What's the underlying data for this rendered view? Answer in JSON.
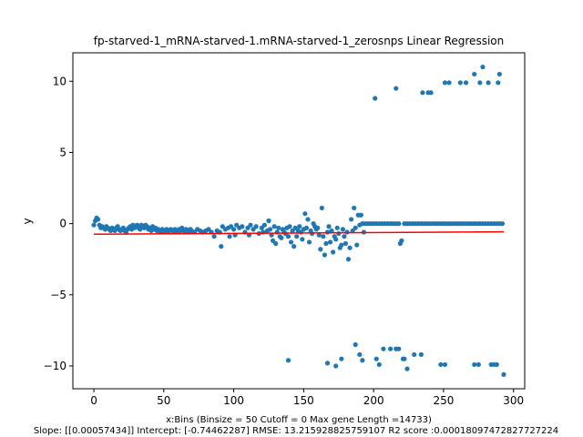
{
  "chart_data": {
    "type": "scatter",
    "title": "fp-starved-1_mRNA-starved-1.mRNA-starved-1_zerosnps Linear Regression",
    "xlabel": "x:Bins  (Binsize = 50 Cutoff = 0 Max gene Length =14733)",
    "ylabel": "y",
    "footer": "Slope: [[0.00057434]] Intercept: [-0.74462287] RMSE: 13.215928825759107 R2 score :0.00018097472827727224",
    "xlim": [
      -15,
      308
    ],
    "ylim": [
      -11.6,
      12
    ],
    "xticks": [
      0,
      50,
      100,
      150,
      200,
      250,
      300
    ],
    "yticks": [
      -10,
      -5,
      0,
      5,
      10
    ],
    "point_color": "#1f77b4",
    "line_color": "#ff0000",
    "regression": {
      "slope": 0.00057434,
      "intercept": -0.74462287,
      "x_range": [
        0,
        293
      ]
    },
    "points": [
      [
        0,
        -0.1
      ],
      [
        1,
        0.2
      ],
      [
        2,
        0.4
      ],
      [
        3,
        0.3
      ],
      [
        4,
        -0.1
      ],
      [
        5,
        -0.3
      ],
      [
        6,
        -0.2
      ],
      [
        7,
        -0.3
      ],
      [
        8,
        -0.4
      ],
      [
        9,
        -0.2
      ],
      [
        10,
        -0.3
      ],
      [
        11,
        -0.4
      ],
      [
        12,
        -0.5
      ],
      [
        13,
        -0.3
      ],
      [
        14,
        -0.4
      ],
      [
        15,
        -0.5
      ],
      [
        16,
        -0.3
      ],
      [
        17,
        -0.2
      ],
      [
        18,
        -0.4
      ],
      [
        19,
        -0.5
      ],
      [
        20,
        -0.4
      ],
      [
        21,
        -0.3
      ],
      [
        22,
        -0.5
      ],
      [
        23,
        -0.6
      ],
      [
        24,
        -0.4
      ],
      [
        25,
        -0.3
      ],
      [
        26,
        -0.2
      ],
      [
        27,
        -0.4
      ],
      [
        28,
        -0.1
      ],
      [
        29,
        -0.3
      ],
      [
        30,
        -0.2
      ],
      [
        31,
        -0.1
      ],
      [
        32,
        -0.3
      ],
      [
        33,
        -0.4
      ],
      [
        34,
        -0.1
      ],
      [
        35,
        -0.2
      ],
      [
        36,
        -0.3
      ],
      [
        37,
        -0.1
      ],
      [
        38,
        -0.2
      ],
      [
        39,
        -0.4
      ],
      [
        40,
        -0.3
      ],
      [
        41,
        -0.5
      ],
      [
        42,
        -0.2
      ],
      [
        43,
        -0.4
      ],
      [
        44,
        -0.3
      ],
      [
        45,
        -0.5
      ],
      [
        46,
        -0.4
      ],
      [
        47,
        -0.6
      ],
      [
        48,
        -0.5
      ],
      [
        49,
        -0.4
      ],
      [
        50,
        -0.6
      ],
      [
        51,
        -0.5
      ],
      [
        52,
        -0.4
      ],
      [
        53,
        -0.6
      ],
      [
        54,
        -0.5
      ],
      [
        55,
        -0.4
      ],
      [
        56,
        -0.5
      ],
      [
        57,
        -0.6
      ],
      [
        58,
        -0.4
      ],
      [
        59,
        -0.5
      ],
      [
        60,
        -0.6
      ],
      [
        61,
        -0.4
      ],
      [
        62,
        -0.5
      ],
      [
        63,
        -0.3
      ],
      [
        64,
        -0.5
      ],
      [
        65,
        -0.6
      ],
      [
        66,
        -0.4
      ],
      [
        67,
        -0.5
      ],
      [
        68,
        -0.6
      ],
      [
        69,
        -0.4
      ],
      [
        70,
        -0.5
      ],
      [
        72,
        -0.6
      ],
      [
        74,
        -0.4
      ],
      [
        76,
        -0.5
      ],
      [
        78,
        -0.6
      ],
      [
        80,
        -0.5
      ],
      [
        82,
        -0.4
      ],
      [
        84,
        -0.6
      ],
      [
        86,
        -0.9
      ],
      [
        88,
        -0.5
      ],
      [
        90,
        -0.6
      ],
      [
        91,
        -1.6
      ],
      [
        92,
        -0.2
      ],
      [
        94,
        -0.4
      ],
      [
        96,
        -0.3
      ],
      [
        97,
        -0.9
      ],
      [
        98,
        -0.2
      ],
      [
        100,
        -0.4
      ],
      [
        101,
        -0.8
      ],
      [
        102,
        -0.1
      ],
      [
        104,
        -0.3
      ],
      [
        106,
        -0.2
      ],
      [
        108,
        -0.6
      ],
      [
        110,
        -0.3
      ],
      [
        111,
        -0.8
      ],
      [
        112,
        -0.1
      ],
      [
        114,
        -0.4
      ],
      [
        116,
        -0.2
      ],
      [
        118,
        -0.7
      ],
      [
        120,
        -0.3
      ],
      [
        121,
        -0.6
      ],
      [
        122,
        -0.1
      ],
      [
        124,
        -0.5
      ],
      [
        125,
        0.2
      ],
      [
        126,
        -0.4
      ],
      [
        127,
        -0.8
      ],
      [
        128,
        -1.2
      ],
      [
        129,
        -0.2
      ],
      [
        130,
        -1.4
      ],
      [
        131,
        -0.6
      ],
      [
        132,
        -0.3
      ],
      [
        133,
        -0.9
      ],
      [
        134,
        -1.0
      ],
      [
        135,
        -0.4
      ],
      [
        136,
        -0.6
      ],
      [
        137,
        -0.7
      ],
      [
        138,
        -0.3
      ],
      [
        139,
        -0.9
      ],
      [
        140,
        -0.2
      ],
      [
        141,
        -1.3
      ],
      [
        142,
        -0.5
      ],
      [
        143,
        -1.6
      ],
      [
        144,
        -0.3
      ],
      [
        145,
        -0.9
      ],
      [
        146,
        -0.5
      ],
      [
        147,
        -0.2
      ],
      [
        148,
        -0.6
      ],
      [
        149,
        -1.1
      ],
      [
        150,
        -0.4
      ],
      [
        151,
        0.7
      ],
      [
        152,
        -0.3
      ],
      [
        153,
        0.3
      ],
      [
        154,
        -1.3
      ],
      [
        155,
        -0.5
      ],
      [
        156,
        -0.7
      ],
      [
        157,
        0.0
      ],
      [
        158,
        -0.2
      ],
      [
        159,
        -0.4
      ],
      [
        160,
        -0.3
      ],
      [
        161,
        -0.8
      ],
      [
        162,
        -1.8
      ],
      [
        163,
        1.1
      ],
      [
        164,
        -0.9
      ],
      [
        165,
        -2.2
      ],
      [
        166,
        -1.4
      ],
      [
        167,
        -0.6
      ],
      [
        168,
        -0.2
      ],
      [
        169,
        -1.3
      ],
      [
        170,
        -0.5
      ],
      [
        171,
        -2.0
      ],
      [
        172,
        -0.9
      ],
      [
        173,
        -1.1
      ],
      [
        174,
        -0.3
      ],
      [
        175,
        -0.7
      ],
      [
        176,
        -1.7
      ],
      [
        177,
        -1.5
      ],
      [
        178,
        -0.4
      ],
      [
        179,
        -0.9
      ],
      [
        180,
        -1.4
      ],
      [
        181,
        -0.6
      ],
      [
        182,
        -2.5
      ],
      [
        183,
        -1.7
      ],
      [
        184,
        0.3
      ],
      [
        185,
        -0.5
      ],
      [
        186,
        1.1
      ],
      [
        187,
        -0.3
      ],
      [
        188,
        -1.5
      ],
      [
        189,
        0.6
      ],
      [
        190,
        -0.1
      ],
      [
        191,
        0.6
      ],
      [
        192,
        0.0
      ],
      [
        193,
        -0.6
      ],
      [
        194,
        0.0
      ],
      [
        196,
        0.0
      ],
      [
        198,
        0.0
      ],
      [
        200,
        0.0
      ],
      [
        202,
        0.0
      ],
      [
        204,
        0.0
      ],
      [
        206,
        0.0
      ],
      [
        208,
        0.0
      ],
      [
        210,
        0.0
      ],
      [
        212,
        0.0
      ],
      [
        214,
        0.0
      ],
      [
        216,
        0.0
      ],
      [
        218,
        0.0
      ],
      [
        219,
        -1.4
      ],
      [
        220,
        -1.2
      ],
      [
        222,
        0.0
      ],
      [
        224,
        0.0
      ],
      [
        226,
        0.0
      ],
      [
        228,
        0.0
      ],
      [
        230,
        0.0
      ],
      [
        232,
        0.0
      ],
      [
        234,
        0.0
      ],
      [
        236,
        0.0
      ],
      [
        238,
        0.0
      ],
      [
        240,
        0.0
      ],
      [
        242,
        0.0
      ],
      [
        244,
        0.0
      ],
      [
        246,
        0.0
      ],
      [
        248,
        0.0
      ],
      [
        250,
        0.0
      ],
      [
        252,
        0.0
      ],
      [
        254,
        0.0
      ],
      [
        256,
        0.0
      ],
      [
        258,
        0.0
      ],
      [
        260,
        0.0
      ],
      [
        262,
        0.0
      ],
      [
        264,
        0.0
      ],
      [
        266,
        0.0
      ],
      [
        268,
        0.0
      ],
      [
        270,
        0.0
      ],
      [
        272,
        0.0
      ],
      [
        274,
        0.0
      ],
      [
        276,
        0.0
      ],
      [
        278,
        0.0
      ],
      [
        280,
        0.0
      ],
      [
        282,
        0.0
      ],
      [
        284,
        0.0
      ],
      [
        286,
        0.0
      ],
      [
        288,
        0.0
      ],
      [
        290,
        0.0
      ],
      [
        292,
        0.0
      ],
      [
        201,
        8.8
      ],
      [
        216,
        9.5
      ],
      [
        235,
        9.2
      ],
      [
        239,
        9.2
      ],
      [
        241,
        9.2
      ],
      [
        251,
        9.9
      ],
      [
        254,
        9.9
      ],
      [
        262,
        9.9
      ],
      [
        266,
        9.9
      ],
      [
        272,
        10.5
      ],
      [
        276,
        9.9
      ],
      [
        278,
        11.0
      ],
      [
        282,
        9.9
      ],
      [
        289,
        9.9
      ],
      [
        290,
        10.5
      ],
      [
        139,
        -9.6
      ],
      [
        167,
        -9.8
      ],
      [
        173,
        -10.0
      ],
      [
        177,
        -9.5
      ],
      [
        187,
        -8.5
      ],
      [
        190,
        -9.2
      ],
      [
        192,
        -9.6
      ],
      [
        202,
        -9.5
      ],
      [
        204,
        -9.9
      ],
      [
        207,
        -8.8
      ],
      [
        212,
        -8.8
      ],
      [
        216,
        -8.8
      ],
      [
        218,
        -8.8
      ],
      [
        221,
        -9.5
      ],
      [
        222,
        -9.5
      ],
      [
        224,
        -10.2
      ],
      [
        229,
        -9.2
      ],
      [
        234,
        -9.2
      ],
      [
        248,
        -9.9
      ],
      [
        251,
        -9.9
      ],
      [
        272,
        -9.9
      ],
      [
        275,
        -9.9
      ],
      [
        284,
        -9.9
      ],
      [
        286,
        -9.9
      ],
      [
        288,
        -9.9
      ],
      [
        293,
        -10.6
      ]
    ]
  }
}
